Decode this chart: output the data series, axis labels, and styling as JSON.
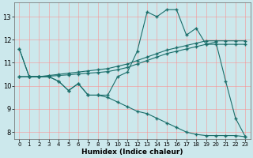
{
  "xlabel": "Humidex (Indice chaleur)",
  "background_color": "#cce8ec",
  "grid_color": "#ff8888",
  "line_color": "#1a6e6a",
  "x": [
    0,
    1,
    2,
    3,
    4,
    5,
    6,
    7,
    8,
    9,
    10,
    11,
    12,
    13,
    14,
    15,
    16,
    17,
    18,
    19,
    20,
    21,
    22,
    23
  ],
  "y_jagged": [
    11.6,
    10.4,
    10.4,
    10.4,
    10.2,
    9.8,
    10.1,
    9.6,
    9.6,
    9.6,
    10.4,
    10.6,
    11.5,
    13.2,
    13.0,
    13.3,
    13.3,
    12.2,
    12.5,
    11.8,
    11.9,
    10.2,
    8.6,
    7.8
  ],
  "y_upper": [
    10.4,
    10.4,
    10.4,
    10.45,
    10.5,
    10.55,
    10.6,
    10.65,
    10.7,
    10.75,
    10.85,
    10.95,
    11.1,
    11.25,
    11.4,
    11.55,
    11.65,
    11.75,
    11.85,
    11.95,
    11.95,
    11.95,
    11.95,
    11.95
  ],
  "y_lower": [
    10.4,
    10.4,
    10.4,
    10.42,
    10.45,
    10.48,
    10.52,
    10.55,
    10.58,
    10.62,
    10.7,
    10.8,
    10.95,
    11.1,
    11.25,
    11.4,
    11.5,
    11.6,
    11.7,
    11.8,
    11.8,
    11.8,
    11.8,
    11.8
  ],
  "y_decline": [
    11.6,
    10.4,
    10.4,
    10.4,
    10.2,
    9.8,
    10.1,
    9.6,
    9.6,
    9.5,
    9.3,
    9.1,
    8.9,
    8.8,
    8.6,
    8.4,
    8.2,
    8.0,
    7.9,
    7.85,
    7.85,
    7.85,
    7.85,
    7.8
  ],
  "ylim": [
    7.7,
    13.6
  ],
  "xlim": [
    -0.5,
    23.5
  ],
  "yticks": [
    8,
    9,
    10,
    11,
    12,
    13
  ],
  "xticks": [
    0,
    1,
    2,
    3,
    4,
    5,
    6,
    7,
    8,
    9,
    10,
    11,
    12,
    13,
    14,
    15,
    16,
    17,
    18,
    19,
    20,
    21,
    22,
    23
  ]
}
